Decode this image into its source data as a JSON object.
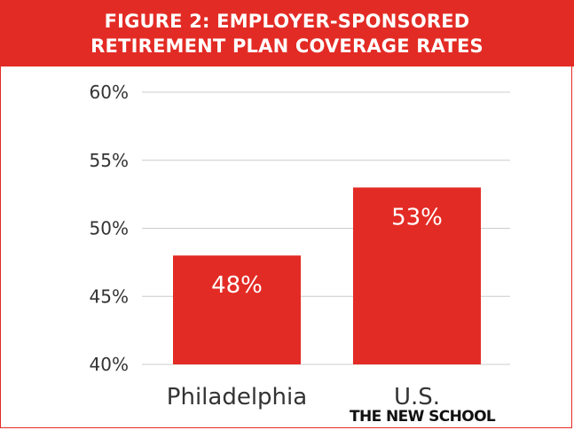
{
  "title": {
    "line1": "FIGURE 2: EMPLOYER-SPONSORED",
    "line2": "RETIREMENT PLAN COVERAGE RATES"
  },
  "logo_text": "THE NEW SCHOOL",
  "colors": {
    "accent": "#e32b25",
    "grid": "#cccccc",
    "text": "#333333"
  },
  "chart_data": {
    "type": "bar",
    "categories": [
      "Philadelphia",
      "U.S."
    ],
    "values": [
      48,
      53
    ],
    "data_labels": [
      "48%",
      "53%"
    ],
    "ylim": [
      40,
      60
    ],
    "yticks": [
      40,
      45,
      50,
      55,
      60
    ],
    "ytick_labels": [
      "40%",
      "45%",
      "50%",
      "55%",
      "60%"
    ],
    "grid": true,
    "legend": "none"
  }
}
